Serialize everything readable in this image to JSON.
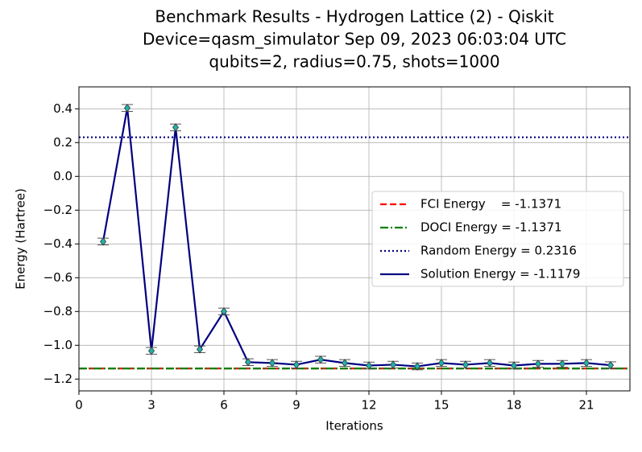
{
  "chart_data": {
    "type": "line",
    "title_lines": [
      "Benchmark Results - Hydrogen Lattice (2) - Qiskit",
      "Device=qasm_simulator  Sep 09, 2023 06:03:04 UTC",
      "qubits=2, radius=0.75, shots=1000"
    ],
    "x_label": "Iterations",
    "y_label": "Energy (Hartree)",
    "xlim": [
      0,
      22.8
    ],
    "ylim": [
      -1.27,
      0.53
    ],
    "xticks": [
      0,
      3,
      6,
      9,
      12,
      15,
      18,
      21
    ],
    "yticks": [
      {
        "value": -1.2,
        "label": "−1.2"
      },
      {
        "value": -1.0,
        "label": "−1.0"
      },
      {
        "value": -0.8,
        "label": "−0.8"
      },
      {
        "value": -0.6,
        "label": "−0.6"
      },
      {
        "value": -0.4,
        "label": "−0.4"
      },
      {
        "value": -0.2,
        "label": "−0.2"
      },
      {
        "value": 0.0,
        "label": "0.0"
      },
      {
        "value": 0.2,
        "label": "0.2"
      },
      {
        "value": 0.4,
        "label": "0.4"
      }
    ],
    "grid": true,
    "legend": "right",
    "reference_lines": [
      {
        "name": "FCI Energy    = -1.1371",
        "value": -1.1371,
        "color": "#ff0000",
        "style": "dashed"
      },
      {
        "name": "DOCI Energy = -1.1371",
        "value": -1.1371,
        "color": "#008000",
        "style": "dashdot"
      },
      {
        "name": "Random Energy = 0.2316",
        "value": 0.2316,
        "color": "#000080",
        "style": "dotted"
      }
    ],
    "series": [
      {
        "name": "Solution Energy = -1.1179",
        "color": "#000080",
        "marker_color": "#20b2aa",
        "x": [
          1,
          2,
          3,
          4,
          5,
          6,
          7,
          8,
          9,
          10,
          11,
          12,
          13,
          14,
          15,
          16,
          17,
          18,
          19,
          20,
          21,
          22
        ],
        "values": [
          -0.386,
          0.405,
          -1.033,
          0.29,
          -1.024,
          -0.8,
          -1.1,
          -1.105,
          -1.115,
          -1.085,
          -1.105,
          -1.12,
          -1.115,
          -1.125,
          -1.105,
          -1.115,
          -1.105,
          -1.12,
          -1.11,
          -1.11,
          -1.105,
          -1.118
        ],
        "errors": [
          0.02,
          0.02,
          0.02,
          0.02,
          0.02,
          0.02,
          0.02,
          0.02,
          0.02,
          0.02,
          0.02,
          0.02,
          0.02,
          0.02,
          0.02,
          0.02,
          0.02,
          0.02,
          0.02,
          0.02,
          0.02,
          0.02
        ]
      }
    ]
  }
}
